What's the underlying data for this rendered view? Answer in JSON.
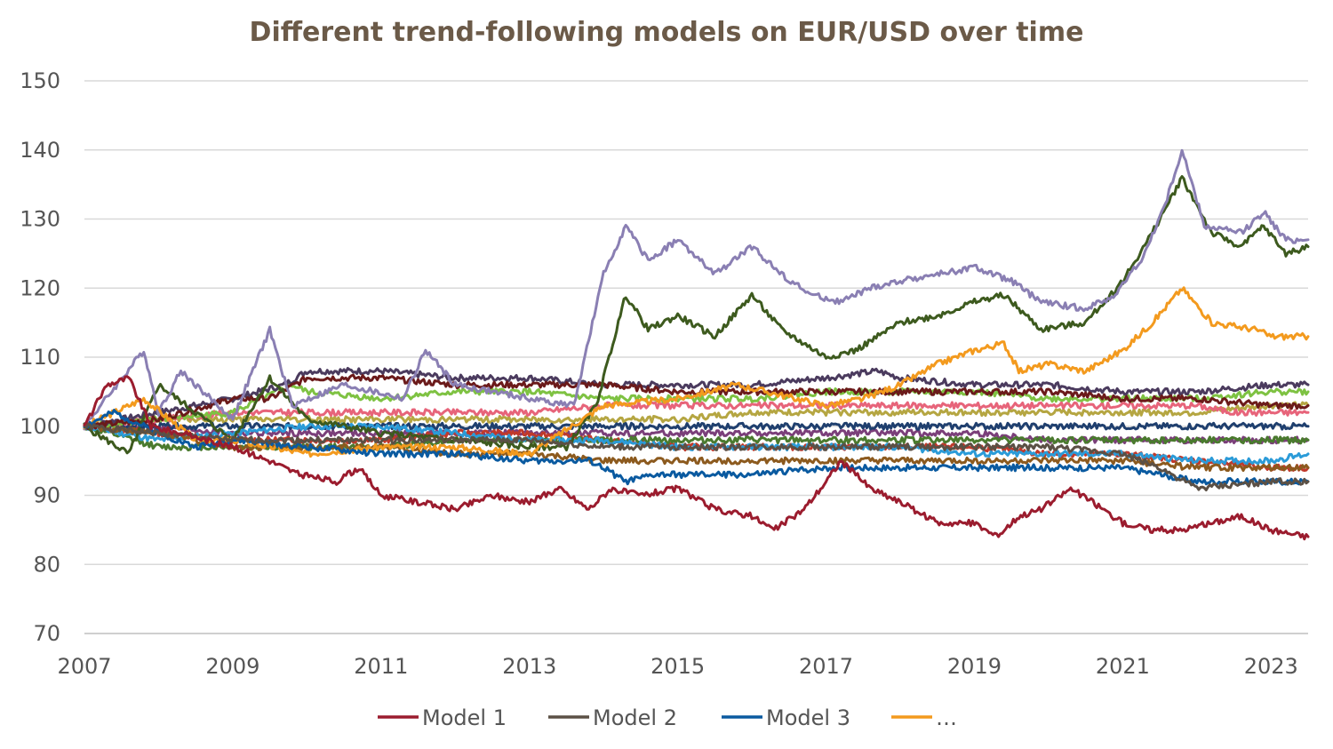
{
  "chart_data": {
    "type": "line",
    "title": "Different trend-following models on EUR/USD over time",
    "xlabel": "",
    "ylabel": "",
    "xlim": [
      2007,
      2023.5
    ],
    "ylim": [
      70,
      150
    ],
    "y_ticks": [
      70,
      80,
      90,
      100,
      110,
      120,
      130,
      140,
      150
    ],
    "x_ticks": [
      "2007",
      "2009",
      "2011",
      "2013",
      "2015",
      "2017",
      "2019",
      "2021",
      "2023"
    ],
    "grid": true,
    "legend_position": "bottom",
    "legend": [
      {
        "label": "Model 1",
        "color": "#9b1c2e"
      },
      {
        "label": "Model 2",
        "color": "#5b5045"
      },
      {
        "label": "Model 3",
        "color": "#0a5aa0"
      },
      {
        "label": "…",
        "color": "#f39a1e"
      }
    ],
    "series": [
      {
        "name": "Model 1",
        "color": "#9b1c2e",
        "x": [
          2007,
          2007.3,
          2007.6,
          2007.9,
          2008.3,
          2009,
          2009.5,
          2009.9,
          2010.4,
          2010.7,
          2011,
          2011.5,
          2012,
          2012.5,
          2013,
          2013.4,
          2013.8,
          2014.1,
          2014.5,
          2015,
          2015.5,
          2016,
          2016.3,
          2016.7,
          2017,
          2017.2,
          2017.6,
          2018,
          2018.5,
          2019,
          2019.3,
          2019.6,
          2019.9,
          2020.3,
          2020.6,
          2021,
          2021.4,
          2021.8,
          2022.2,
          2022.6,
          2023,
          2023.5
        ],
        "values": [
          100,
          106,
          107,
          100,
          99,
          97,
          95,
          93,
          92,
          94,
          90,
          89,
          88,
          90,
          89,
          91,
          88,
          91,
          90,
          91,
          88,
          87,
          85,
          88,
          92,
          95,
          91,
          89,
          86,
          86,
          84,
          87,
          88,
          91,
          89,
          86,
          85,
          85,
          86,
          87,
          85,
          84
        ]
      },
      {
        "name": "Model 2",
        "color": "#5b5045",
        "x": [
          2007,
          2008,
          2009,
          2010,
          2011,
          2012,
          2013,
          2014,
          2015,
          2016,
          2017,
          2018,
          2019,
          2020,
          2021,
          2021.5,
          2022,
          2023,
          2023.5
        ],
        "values": [
          100,
          99,
          98,
          98,
          98,
          98,
          98,
          97,
          97,
          97,
          97,
          97,
          97,
          97,
          96,
          94,
          91,
          92,
          92
        ]
      },
      {
        "name": "Model 3",
        "color": "#0a5aa0",
        "x": [
          2007,
          2007.4,
          2008,
          2008.5,
          2009,
          2010,
          2011,
          2012,
          2013,
          2013.8,
          2014,
          2014.3,
          2014.7,
          2015,
          2016,
          2017,
          2018,
          2019,
          2020,
          2021,
          2022,
          2023,
          2023.5
        ],
        "values": [
          100,
          102,
          99,
          97,
          98,
          97,
          96,
          96,
          95,
          95,
          94,
          92,
          93,
          93,
          93,
          94,
          94,
          94,
          94,
          94,
          92,
          92,
          92
        ]
      },
      {
        "name": "",
        "color": "#f39a1e",
        "x": [
          2007,
          2007.8,
          2008.5,
          2009,
          2010,
          2011,
          2012,
          2013,
          2014,
          2015,
          2015.8,
          2016.2,
          2017,
          2017.5,
          2018,
          2018.5,
          2019,
          2019.4,
          2019.6,
          2020,
          2020.5,
          2021,
          2021.4,
          2021.8,
          2022.2,
          2022.8,
          2023,
          2023.5
        ],
        "values": [
          100,
          104,
          98,
          98,
          96,
          97,
          97,
          96,
          103,
          104,
          106,
          105,
          103,
          104,
          106,
          109,
          111,
          112,
          108,
          109,
          108,
          111,
          115,
          120,
          115,
          114,
          113,
          113
        ]
      },
      {
        "name": "",
        "color": "#8a7fb3",
        "x": [
          2007,
          2007.8,
          2008,
          2008.3,
          2009,
          2009.5,
          2009.8,
          2010.5,
          2011.3,
          2011.6,
          2012,
          2013,
          2013.6,
          2014,
          2014.3,
          2014.6,
          2015,
          2015.5,
          2016,
          2016.4,
          2016.8,
          2017.2,
          2017.6,
          2018,
          2018.5,
          2019,
          2019.5,
          2019.9,
          2020.5,
          2020.9,
          2021.3,
          2021.6,
          2021.8,
          2022.1,
          2022.6,
          2022.9,
          2023.2,
          2023.5
        ],
        "values": [
          100,
          111,
          102,
          108,
          101,
          114,
          103,
          106,
          104,
          111,
          106,
          104,
          103,
          122,
          129,
          124,
          127,
          122,
          126,
          122,
          119,
          118,
          120,
          121,
          122,
          123,
          121,
          118,
          117,
          119,
          125,
          133,
          140,
          129,
          128,
          131,
          127,
          127
        ]
      },
      {
        "name": "",
        "color": "#3d5a1e",
        "x": [
          2007,
          2007.6,
          2008,
          2009,
          2009.5,
          2010,
          2011,
          2012,
          2013,
          2013.5,
          2013.9,
          2014.3,
          2014.6,
          2015,
          2015.5,
          2016,
          2016.4,
          2017,
          2017.4,
          2018,
          2018.5,
          2019,
          2019.4,
          2019.9,
          2020.5,
          2021,
          2021.4,
          2021.8,
          2022.2,
          2022.6,
          2022.9,
          2023.2,
          2023.5
        ],
        "values": [
          100,
          96,
          106,
          98,
          107,
          101,
          99,
          98,
          97,
          97,
          103,
          119,
          114,
          116,
          113,
          119,
          114,
          110,
          111,
          115,
          116,
          118,
          119,
          114,
          115,
          121,
          128,
          136,
          128,
          126,
          129,
          125,
          126
        ]
      },
      {
        "name": "",
        "color": "#6b1a1a",
        "x": [
          2007,
          2008,
          2009,
          2009.5,
          2010,
          2011,
          2012,
          2013,
          2014,
          2015,
          2016,
          2017,
          2018,
          2019,
          2020,
          2021,
          2022,
          2023,
          2023.5
        ],
        "values": [
          100,
          101,
          104,
          104,
          107,
          107,
          106,
          106,
          106,
          105,
          105,
          105,
          105,
          105,
          105,
          104,
          104,
          103,
          103
        ]
      },
      {
        "name": "",
        "color": "#4b3b5e",
        "x": [
          2007,
          2008,
          2009,
          2009.7,
          2010,
          2011,
          2012,
          2013,
          2014,
          2015,
          2016,
          2017,
          2017.7,
          2018,
          2019,
          2020,
          2021,
          2022,
          2023,
          2023.5
        ],
        "values": [
          100,
          102,
          104,
          106,
          108,
          108,
          107,
          107,
          106,
          106,
          106,
          107,
          108,
          107,
          106,
          106,
          105,
          105,
          106,
          106
        ]
      },
      {
        "name": "",
        "color": "#7ec242",
        "x": [
          2007,
          2008,
          2009,
          2009.8,
          2010,
          2011,
          2012,
          2013,
          2014,
          2015,
          2016,
          2017,
          2018,
          2019,
          2020,
          2021,
          2022,
          2023,
          2023.5
        ],
        "values": [
          100,
          101,
          102,
          106,
          105,
          104,
          105,
          105,
          104,
          104,
          104,
          105,
          105,
          105,
          104,
          104,
          104,
          105,
          105
        ]
      },
      {
        "name": "",
        "color": "#e7647a",
        "x": [
          2007,
          2008,
          2009,
          2010,
          2011,
          2012,
          2013,
          2014,
          2015,
          2016,
          2017,
          2018,
          2019,
          2020,
          2021,
          2022,
          2022.5,
          2023,
          2023.5
        ],
        "values": [
          100,
          101,
          102,
          102,
          102,
          102,
          102,
          103,
          103,
          103,
          103,
          103,
          103,
          103,
          103,
          103,
          102,
          102,
          102
        ]
      },
      {
        "name": "",
        "color": "#8c5a1e",
        "x": [
          2007,
          2008,
          2009,
          2010,
          2011,
          2012,
          2013,
          2014,
          2015,
          2016,
          2017,
          2018,
          2019,
          2020,
          2021,
          2022,
          2023,
          2023.5
        ],
        "values": [
          100,
          99,
          97,
          97,
          97,
          96,
          96,
          95,
          95,
          95,
          95,
          95,
          95,
          95,
          95,
          94,
          94,
          94
        ]
      },
      {
        "name": "",
        "color": "#2b9bd8",
        "x": [
          2007,
          2008,
          2009,
          2010,
          2011,
          2012,
          2013,
          2014,
          2015,
          2016,
          2017,
          2018,
          2019,
          2020,
          2021,
          2022,
          2023,
          2023.5
        ],
        "values": [
          100,
          98,
          99,
          100,
          100,
          99,
          98,
          98,
          97,
          97,
          97,
          97,
          96,
          96,
          96,
          95,
          95,
          96
        ]
      },
      {
        "name": "",
        "color": "#4a7a2e",
        "x": [
          2007,
          2008,
          2009,
          2010,
          2011,
          2012,
          2013,
          2014,
          2015,
          2016,
          2017,
          2018,
          2019,
          2020,
          2021,
          2022,
          2023,
          2023.5
        ],
        "values": [
          100,
          97,
          97,
          97,
          97,
          98,
          98,
          98,
          98,
          98,
          98,
          98,
          98,
          98,
          98,
          98,
          98,
          98
        ]
      },
      {
        "name": "",
        "color": "#c0392b",
        "x": [
          2007,
          2008,
          2009,
          2010,
          2011,
          2012,
          2013,
          2014,
          2015,
          2016,
          2017,
          2018,
          2019,
          2020,
          2021,
          2022,
          2023,
          2023.5
        ],
        "values": [
          100,
          99,
          98,
          98,
          98,
          99,
          99,
          98,
          97,
          97,
          97,
          97,
          97,
          96,
          96,
          95,
          94,
          94
        ]
      },
      {
        "name": "",
        "color": "#1f3f6e",
        "x": [
          2007,
          2008,
          2009,
          2010,
          2011,
          2012,
          2013,
          2014,
          2015,
          2016,
          2017,
          2018,
          2019,
          2020,
          2021,
          2022,
          2023,
          2023.5
        ],
        "values": [
          100,
          100,
          100,
          100,
          100,
          100,
          100,
          100,
          100,
          100,
          100,
          100,
          100,
          100,
          100,
          100,
          100,
          100
        ]
      },
      {
        "name": "",
        "color": "#b5a642",
        "x": [
          2007,
          2008,
          2009,
          2010,
          2011,
          2012,
          2013,
          2014,
          2015,
          2016,
          2017,
          2018,
          2019,
          2020,
          2021,
          2022,
          2023,
          2023.5
        ],
        "values": [
          100,
          101,
          101,
          101,
          101,
          101,
          101,
          101,
          101,
          102,
          102,
          102,
          102,
          102,
          102,
          102,
          103,
          103
        ]
      },
      {
        "name": "",
        "color": "#7b3f7a",
        "x": [
          2007,
          2008,
          2009,
          2010,
          2011,
          2012,
          2013,
          2014,
          2015,
          2016,
          2017,
          2018,
          2019,
          2020,
          2021,
          2022,
          2023,
          2023.5
        ],
        "values": [
          100,
          100,
          99,
          99,
          99,
          99,
          99,
          99,
          99,
          99,
          99,
          99,
          99,
          98,
          98,
          98,
          98,
          98
        ]
      }
    ]
  }
}
